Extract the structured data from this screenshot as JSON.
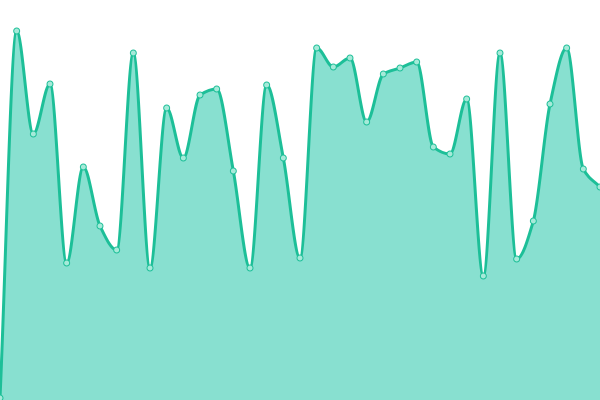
{
  "chart_data": {
    "type": "area",
    "title": "",
    "xlabel": "",
    "ylabel": "",
    "x": [
      0,
      1,
      2,
      3,
      4,
      5,
      6,
      7,
      8,
      9,
      10,
      11,
      12,
      13,
      14,
      15,
      16,
      17,
      18,
      19,
      20,
      21,
      22,
      23,
      24,
      25,
      26,
      27,
      28,
      29,
      30,
      31,
      32,
      33,
      34,
      35,
      36
    ],
    "values": [
      2,
      369,
      266,
      316,
      137,
      233,
      174,
      150,
      347,
      132,
      292,
      242,
      305,
      311,
      229,
      132,
      315,
      242,
      142,
      352,
      333,
      342,
      278,
      326,
      332,
      338,
      253,
      246,
      301,
      124,
      347,
      141,
      179,
      296,
      352,
      231,
      213
    ],
    "ylim": [
      0,
      400
    ],
    "grid": false,
    "axes_visible": false,
    "line_color": "#1dbf98",
    "fill_color": "#88e0d0",
    "marker_fill": "#a6ead9"
  }
}
